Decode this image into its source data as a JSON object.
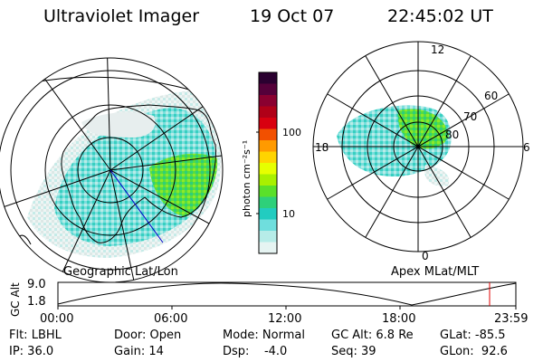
{
  "header": {
    "instrument": "Ultraviolet Imager",
    "date": "19 Oct 07",
    "time": "22:45:02 UT"
  },
  "left_panel": {
    "caption": "Geographic Lat/Lon"
  },
  "right_panel": {
    "caption": "Apex MLat/MLT",
    "mlt_labels": {
      "top": "12",
      "left": "18",
      "right": "6",
      "bottom": "0"
    },
    "mlat_labels": [
      "60",
      "70",
      "80"
    ]
  },
  "colorbar": {
    "unit_label": "photon cm⁻²s⁻¹",
    "ticks": [
      "100",
      "10"
    ],
    "colors": [
      "#2a0030",
      "#55003a",
      "#8a0030",
      "#b00018",
      "#d80010",
      "#f25000",
      "#ff9a00",
      "#ffd400",
      "#e6ff00",
      "#a8f000",
      "#5ae02a",
      "#2ed07a",
      "#22ccc0",
      "#6fdedd",
      "#b6ece8",
      "#e6f4f2"
    ]
  },
  "altitude_plot": {
    "ylabel": "GC Alt",
    "ymax": "9.0",
    "ymin": "1.8",
    "x_ticks": [
      "00:00",
      "06:00",
      "12:00",
      "18:00",
      "23:59"
    ],
    "marker_color": "#e00000"
  },
  "status": {
    "row1": [
      {
        "label": "Flt: LBHL"
      },
      {
        "label": "Door: Open"
      },
      {
        "label": "Mode: Normal"
      },
      {
        "label": "GC Alt: 6.8 Re"
      },
      {
        "label": "GLat: -85.5"
      }
    ],
    "row2": [
      {
        "label": "IP: 36.0"
      },
      {
        "label": "Gain: 14"
      },
      {
        "label": "Dsp:    -4.0"
      },
      {
        "label": "Seq: 39"
      },
      {
        "label": "GLon:  92.6"
      }
    ]
  }
}
